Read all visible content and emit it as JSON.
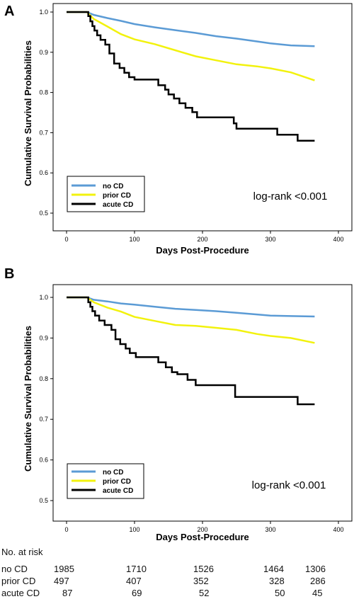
{
  "panels": [
    {
      "letter": "A",
      "ylabel": "Cumulative Survival Probabilities",
      "xlabel": "Days Post-Procedure",
      "logrank": "log-rank <0.001",
      "legend": [
        {
          "label": "no CD",
          "color": "#5b9bd5"
        },
        {
          "label": "prior CD",
          "color": "#f2f20d"
        },
        {
          "label": "acute CD",
          "color": "#000000"
        }
      ]
    },
    {
      "letter": "B",
      "ylabel": "Cumulative Survival Probabilities",
      "xlabel": "Days Post-Procedure",
      "logrank": "log-rank <0.001",
      "legend": [
        {
          "label": "no CD",
          "color": "#5b9bd5"
        },
        {
          "label": "prior CD",
          "color": "#f2f20d"
        },
        {
          "label": "acute CD",
          "color": "#000000"
        }
      ]
    }
  ],
  "risk_table": {
    "title": "No. at risk",
    "rows": [
      {
        "label": "no CD",
        "values": [
          "1985",
          "1710",
          "1526",
          "1464",
          "1306"
        ]
      },
      {
        "label": "prior CD",
        "values": [
          "497",
          "407",
          "352",
          "328",
          "286"
        ]
      },
      {
        "label": "acute CD",
        "values": [
          "87",
          "69",
          "52",
          "50",
          "45"
        ]
      }
    ]
  },
  "chart_data": [
    {
      "type": "line",
      "xlim": [
        0,
        400
      ],
      "ylim": [
        0.5,
        1.0
      ],
      "xticks": [
        0,
        100,
        200,
        300,
        400
      ],
      "yticks": [
        0.5,
        0.6,
        0.7,
        0.8,
        0.9,
        1.0
      ],
      "xticklabels": [
        "0",
        "100",
        "200",
        "300",
        "400"
      ],
      "yticklabels": [
        "0.5",
        "0.6",
        "0.7",
        "0.8",
        "0.9",
        "1.0"
      ],
      "legend_position": "bottom-left",
      "series": [
        {
          "name": "no CD",
          "color": "#5b9bd5",
          "step": false,
          "x": [
            0,
            30,
            40,
            60,
            80,
            100,
            130,
            160,
            190,
            220,
            250,
            280,
            300,
            330,
            365
          ],
          "y": [
            1.0,
            1.0,
            0.993,
            0.985,
            0.978,
            0.97,
            0.962,
            0.955,
            0.948,
            0.94,
            0.934,
            0.927,
            0.922,
            0.917,
            0.915
          ]
        },
        {
          "name": "prior CD",
          "color": "#f2f20d",
          "step": false,
          "x": [
            0,
            30,
            40,
            60,
            80,
            100,
            130,
            160,
            190,
            220,
            250,
            280,
            300,
            330,
            365
          ],
          "y": [
            1.0,
            1.0,
            0.983,
            0.964,
            0.945,
            0.932,
            0.92,
            0.905,
            0.89,
            0.88,
            0.87,
            0.865,
            0.86,
            0.85,
            0.83
          ]
        },
        {
          "name": "acute CD",
          "color": "#000000",
          "step": true,
          "x": [
            0,
            32,
            35,
            38,
            41,
            45,
            50,
            57,
            63,
            70,
            78,
            85,
            92,
            100,
            115,
            135,
            145,
            150,
            158,
            166,
            175,
            185,
            192,
            246,
            250,
            310,
            340,
            365
          ],
          "y": [
            1.0,
            0.99,
            0.977,
            0.965,
            0.954,
            0.942,
            0.931,
            0.919,
            0.897,
            0.872,
            0.861,
            0.849,
            0.838,
            0.832,
            0.832,
            0.818,
            0.807,
            0.795,
            0.785,
            0.773,
            0.762,
            0.751,
            0.738,
            0.723,
            0.71,
            0.695,
            0.68,
            0.68
          ]
        }
      ]
    },
    {
      "type": "line",
      "xlim": [
        0,
        400
      ],
      "ylim": [
        0.5,
        1.0
      ],
      "xticks": [
        0,
        100,
        200,
        300,
        400
      ],
      "yticks": [
        0.5,
        0.6,
        0.7,
        0.8,
        0.9,
        1.0
      ],
      "xticklabels": [
        "0",
        "100",
        "200",
        "300",
        "400"
      ],
      "yticklabels": [
        "0.5",
        "0.6",
        "0.7",
        "0.8",
        "0.9",
        "1.0"
      ],
      "legend_position": "bottom-left",
      "series": [
        {
          "name": "no CD",
          "color": "#5b9bd5",
          "step": false,
          "x": [
            0,
            30,
            40,
            60,
            80,
            100,
            130,
            160,
            190,
            220,
            250,
            280,
            300,
            330,
            365
          ],
          "y": [
            1.0,
            1.0,
            0.994,
            0.99,
            0.985,
            0.982,
            0.977,
            0.972,
            0.969,
            0.966,
            0.962,
            0.958,
            0.955,
            0.954,
            0.953
          ]
        },
        {
          "name": "prior CD",
          "color": "#f2f20d",
          "step": false,
          "x": [
            0,
            30,
            40,
            60,
            80,
            100,
            130,
            160,
            190,
            220,
            250,
            280,
            300,
            330,
            365
          ],
          "y": [
            1.0,
            1.0,
            0.988,
            0.975,
            0.965,
            0.952,
            0.942,
            0.932,
            0.93,
            0.925,
            0.92,
            0.91,
            0.905,
            0.9,
            0.888
          ]
        },
        {
          "name": "acute CD",
          "color": "#000000",
          "step": true,
          "x": [
            0,
            32,
            35,
            38,
            42,
            48,
            56,
            66,
            72,
            79,
            87,
            93,
            102,
            135,
            146,
            155,
            163,
            178,
            190,
            248,
            340,
            365
          ],
          "y": [
            1.0,
            0.988,
            0.977,
            0.966,
            0.955,
            0.943,
            0.932,
            0.92,
            0.897,
            0.885,
            0.874,
            0.863,
            0.853,
            0.84,
            0.828,
            0.816,
            0.811,
            0.797,
            0.784,
            0.755,
            0.737,
            0.737
          ]
        }
      ]
    }
  ]
}
